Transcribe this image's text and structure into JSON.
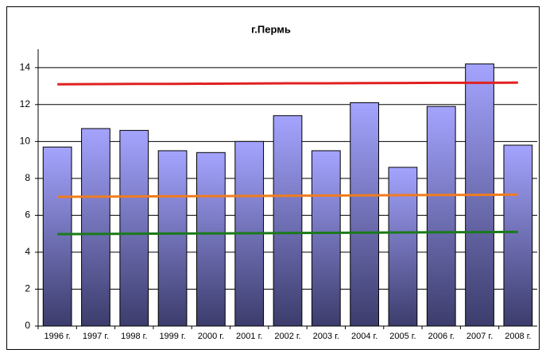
{
  "chart_data": {
    "type": "bar",
    "title": "г.Пермь",
    "categories": [
      "1996 г.",
      "1997 г.",
      "1998 г.",
      "1999 г.",
      "2000 г.",
      "2001 г.",
      "2002 г.",
      "2003 г.",
      "2004 г.",
      "2005 г.",
      "2006 г.",
      "2007 г.",
      "2008 г."
    ],
    "values": [
      9.7,
      10.7,
      10.6,
      9.5,
      9.4,
      10.0,
      11.4,
      9.5,
      12.1,
      8.6,
      11.9,
      14.2,
      9.8
    ],
    "gradient": [
      "#a4a4ff",
      "#3c3c6c"
    ],
    "lines": [
      {
        "color": "#e02020",
        "values": [
          13.1,
          13.11,
          13.12,
          13.12,
          13.13,
          13.14,
          13.15,
          13.15,
          13.16,
          13.17,
          13.18,
          13.18,
          13.19
        ]
      },
      {
        "color": "#f07c1e",
        "values": [
          7.0,
          7.01,
          7.02,
          7.03,
          7.04,
          7.05,
          7.06,
          7.07,
          7.08,
          7.09,
          7.1,
          7.11,
          7.12
        ]
      },
      {
        "color": "#1a7a1a",
        "values": [
          4.98,
          4.99,
          5.0,
          5.01,
          5.02,
          5.03,
          5.04,
          5.05,
          5.06,
          5.07,
          5.08,
          5.09,
          5.1
        ]
      }
    ],
    "ylim": [
      0,
      15
    ],
    "yticks": [
      0,
      2,
      4,
      6,
      8,
      10,
      12,
      14
    ],
    "grid": true
  }
}
